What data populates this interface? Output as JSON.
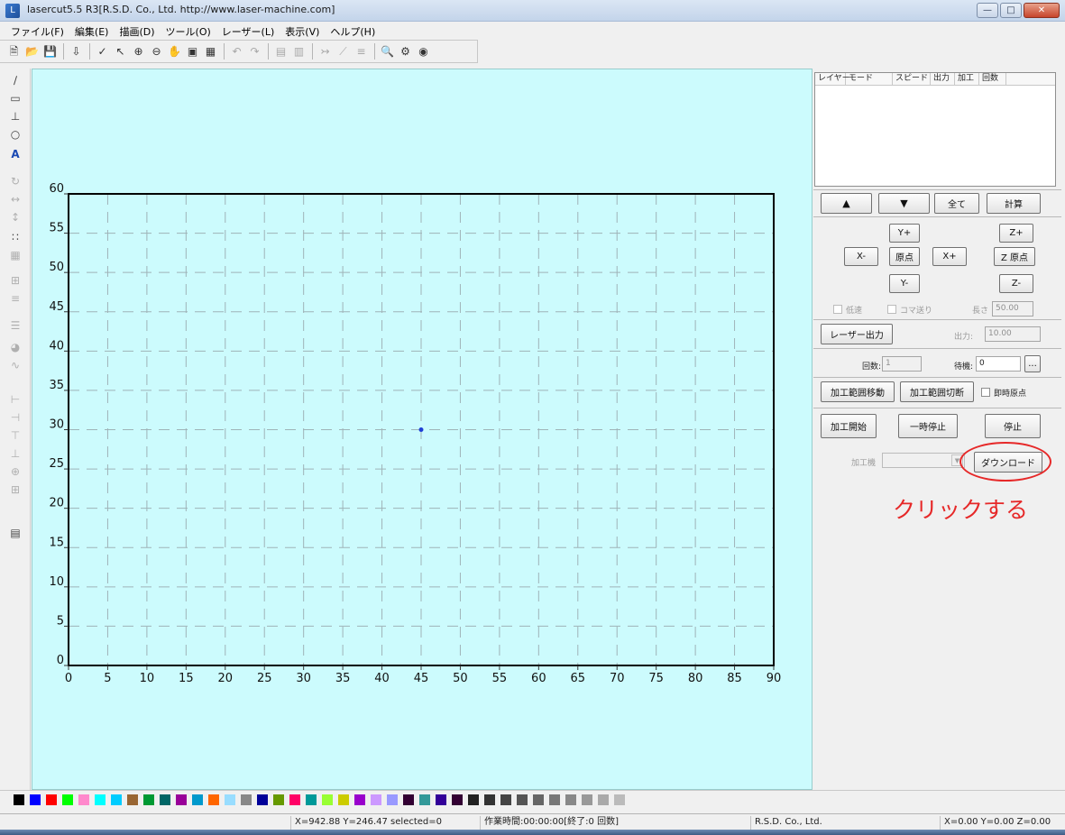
{
  "window": {
    "title": "lasercut5.5 R3[R.S.D. Co., Ltd. http://www.laser-machine.com]",
    "app_icon": "laser-app-icon",
    "controls": [
      "minimize",
      "maximize",
      "close"
    ]
  },
  "menu": [
    "ファイル(F)",
    "編集(E)",
    "描画(D)",
    "ツール(O)",
    "レーザー(L)",
    "表示(V)",
    "ヘルプ(H)"
  ],
  "toolbar_icons": [
    "new-file-icon",
    "open-folder-icon",
    "save-icon",
    "import-icon",
    "select-pen-icon",
    "pointer-select-icon",
    "zoom-in-icon",
    "zoom-out-icon",
    "pan-hand-icon",
    "fit-view-icon",
    "page-view-icon",
    "undo-icon",
    "redo-icon",
    "align-left-icon",
    "align-right-icon",
    "node-edit-icon",
    "line-edit-icon",
    "array-icon",
    "preview-icon",
    "laser-settings-icon",
    "laser-head-icon"
  ],
  "left_tool_icons": [
    "line-tool-icon",
    "rectangle-tool-icon",
    "polyline-tool-icon",
    "ellipse-tool-icon",
    "text-tool-icon",
    "rotate-tool-icon",
    "mirror-h-icon",
    "mirror-v-icon",
    "node-tool-icon",
    "group-tool-icon",
    "ungroup-tool-icon",
    "distribute-tool-icon",
    "hatch-tool-icon",
    "offset-tool-icon",
    "curve-tool-icon",
    "align-left-tool-icon",
    "align-center-tool-icon",
    "align-top-tool-icon",
    "align-bottom-tool-icon",
    "center-h-tool-icon",
    "center-v-tool-icon",
    "layer-tool-icon"
  ],
  "canvas": {
    "background_color": "#ccfbfd",
    "x_axis_labels": [
      "0",
      "5",
      "10",
      "15",
      "20",
      "25",
      "30",
      "35",
      "40",
      "45",
      "50",
      "55",
      "60",
      "65",
      "70",
      "75",
      "80",
      "85",
      "90"
    ],
    "y_axis_labels": [
      "60",
      "55",
      "50",
      "45",
      "40",
      "35",
      "30",
      "25",
      "20",
      "15",
      "10",
      "5",
      "0"
    ],
    "x_max": 90,
    "y_max": 60,
    "marker": {
      "x": 45,
      "y": 30,
      "color": "#1f3fd6"
    }
  },
  "layer_table": {
    "columns": [
      "レイヤー",
      "モード",
      "スピード",
      "出力",
      "加工",
      "回数"
    ]
  },
  "controls": {
    "up_icon": "▲",
    "down_icon": "▼",
    "all": "全て",
    "calc": "計算",
    "y_plus": "Y+",
    "y_minus": "Y-",
    "x_minus": "X-",
    "x_plus": "X+",
    "origin": "原点",
    "z_plus": "Z+",
    "z_origin": "Z 原点",
    "z_minus": "Z-",
    "low_speed": "低速",
    "frame_step": "コマ送り",
    "length_label": "長さ",
    "length_value": "50.00",
    "laser_output": "レーザー出力",
    "output_label": "出力:",
    "output_value": "10.00",
    "count_label": "回数:",
    "count_value": "1",
    "wait_label": "待機:",
    "wait_value": "0",
    "ellipsis": "...",
    "move_range": "加工範囲移動",
    "cut_range": "加工範囲切断",
    "instant_origin": "即時原点",
    "start": "加工開始",
    "pause": "一時停止",
    "stop": "停止",
    "machine_label": "加工機",
    "download": "ダウンロード"
  },
  "annotation": {
    "text": "クリックする",
    "color": "#e62828"
  },
  "palette": [
    "#000000",
    "#0000ff",
    "#ff0000",
    "#00ff00",
    "#ff88cc",
    "#00ffff",
    "#00ccff",
    "#996633",
    "#009933",
    "#006666",
    "#990099",
    "#0099cc",
    "#ff6600",
    "#99ddff",
    "#888888",
    "#000099",
    "#669900",
    "#ff0066",
    "#009999",
    "#99ff33",
    "#cccc00",
    "#9900cc",
    "#cc99ff",
    "#9999ff",
    "#330033",
    "#339999",
    "#330099",
    "#330033",
    "#222222",
    "#333333",
    "#444444",
    "#555555",
    "#666666",
    "#777777",
    "#888888",
    "#999999",
    "#aaaaaa",
    "#bbbbbb"
  ],
  "status": {
    "coords": "X=942.88 Y=246.47 selected=0",
    "work_time": "作業時間:00:00:00[終了:0 回数]",
    "company": "R.S.D. Co., Ltd.",
    "machine_pos": "X=0.00 Y=0.00 Z=0.00"
  }
}
